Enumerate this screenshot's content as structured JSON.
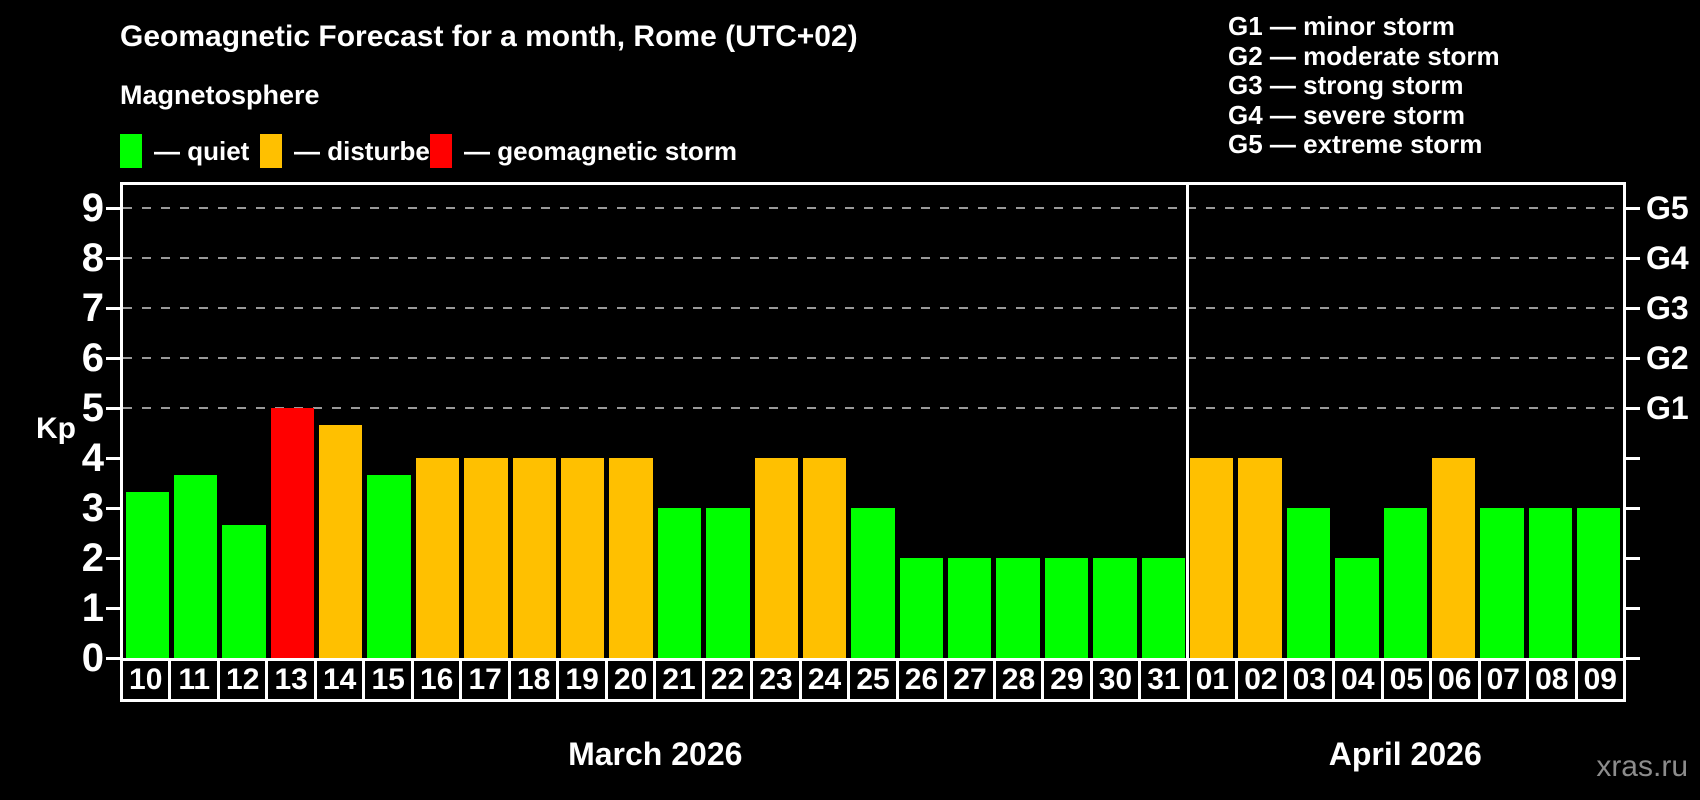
{
  "title": "Geomagnetic Forecast for a month, Rome (UTC+02)",
  "magnetosphere_legend": {
    "heading": "Magnetosphere",
    "items": [
      {
        "name": "quiet",
        "label": "— quiet",
        "color": "#00ff00"
      },
      {
        "name": "disturbed",
        "label": "— disturbed",
        "color": "#ffc000"
      },
      {
        "name": "storm",
        "label": "— geomagnetic storm",
        "color": "#ff0000"
      }
    ]
  },
  "storm_scale_legend": {
    "items": [
      "G1 — minor storm",
      "G2 — moderate storm",
      "G3 — strong storm",
      "G4 — severe storm",
      "G5 — extreme storm"
    ]
  },
  "watermark": "xras.ru",
  "chart_data": {
    "type": "bar",
    "title": "Geomagnetic Forecast for a month, Rome (UTC+02)",
    "xlabel": "",
    "ylabel": "Kp",
    "ylim": [
      0,
      9.4
    ],
    "yticks": [
      0,
      1,
      2,
      3,
      4,
      5,
      6,
      7,
      8,
      9
    ],
    "gridlines_at_kp": [
      5,
      6,
      7,
      8,
      9
    ],
    "grid": "dashed horizontal at Kp 5-9",
    "right_axis": [
      {
        "label": "G5",
        "kp": 9
      },
      {
        "label": "G4",
        "kp": 8
      },
      {
        "label": "G3",
        "kp": 7
      },
      {
        "label": "G2",
        "kp": 6
      },
      {
        "label": "G1",
        "kp": 5
      }
    ],
    "status_colors": {
      "quiet": "#00ff00",
      "disturbed": "#ffc000",
      "storm": "#ff0000"
    },
    "months": [
      {
        "label": "March 2026",
        "days": [
          {
            "day": "10",
            "kp": 3.33,
            "status": "quiet"
          },
          {
            "day": "11",
            "kp": 3.67,
            "status": "quiet"
          },
          {
            "day": "12",
            "kp": 2.67,
            "status": "quiet"
          },
          {
            "day": "13",
            "kp": 5,
            "status": "storm"
          },
          {
            "day": "14",
            "kp": 4.67,
            "status": "disturbed"
          },
          {
            "day": "15",
            "kp": 3.67,
            "status": "quiet"
          },
          {
            "day": "16",
            "kp": 4,
            "status": "disturbed"
          },
          {
            "day": "17",
            "kp": 4,
            "status": "disturbed"
          },
          {
            "day": "18",
            "kp": 4,
            "status": "disturbed"
          },
          {
            "day": "19",
            "kp": 4,
            "status": "disturbed"
          },
          {
            "day": "20",
            "kp": 4,
            "status": "disturbed"
          },
          {
            "day": "21",
            "kp": 3,
            "status": "quiet"
          },
          {
            "day": "22",
            "kp": 3,
            "status": "quiet"
          },
          {
            "day": "23",
            "kp": 4,
            "status": "disturbed"
          },
          {
            "day": "24",
            "kp": 4,
            "status": "disturbed"
          },
          {
            "day": "25",
            "kp": 3,
            "status": "quiet"
          },
          {
            "day": "26",
            "kp": 2,
            "status": "quiet"
          },
          {
            "day": "27",
            "kp": 2,
            "status": "quiet"
          },
          {
            "day": "28",
            "kp": 2,
            "status": "quiet"
          },
          {
            "day": "29",
            "kp": 2,
            "status": "quiet"
          },
          {
            "day": "30",
            "kp": 2,
            "status": "quiet"
          },
          {
            "day": "31",
            "kp": 2,
            "status": "quiet"
          }
        ]
      },
      {
        "label": "April 2026",
        "days": [
          {
            "day": "01",
            "kp": 4,
            "status": "disturbed"
          },
          {
            "day": "02",
            "kp": 4,
            "status": "disturbed"
          },
          {
            "day": "03",
            "kp": 3,
            "status": "quiet"
          },
          {
            "day": "04",
            "kp": 2,
            "status": "quiet"
          },
          {
            "day": "05",
            "kp": 3,
            "status": "quiet"
          },
          {
            "day": "06",
            "kp": 4,
            "status": "disturbed"
          },
          {
            "day": "07",
            "kp": 3,
            "status": "quiet"
          },
          {
            "day": "08",
            "kp": 3,
            "status": "quiet"
          },
          {
            "day": "09",
            "kp": 3,
            "status": "quiet"
          }
        ]
      }
    ]
  }
}
